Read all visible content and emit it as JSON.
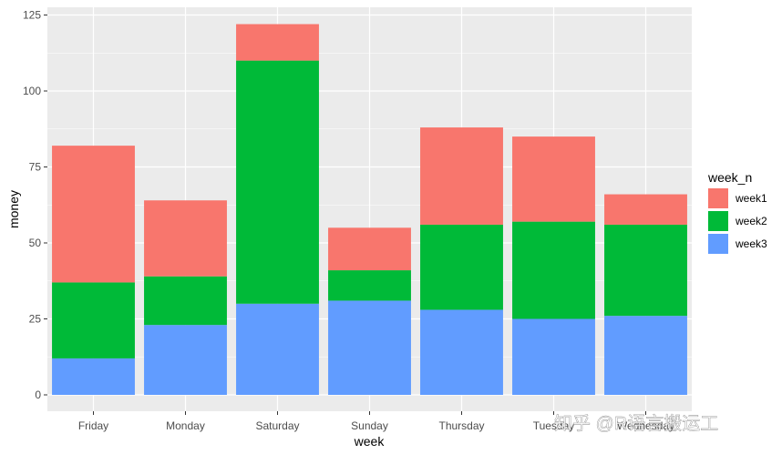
{
  "chart_data": {
    "type": "bar",
    "stacked": true,
    "title": "",
    "xlabel": "week",
    "ylabel": "money",
    "categories": [
      "Friday",
      "Monday",
      "Saturday",
      "Sunday",
      "Thursday",
      "Tuesday",
      "Wednesday"
    ],
    "series": [
      {
        "name": "week3",
        "color": "#619CFF",
        "values": [
          12,
          23,
          30,
          31,
          28,
          25,
          26
        ]
      },
      {
        "name": "week2",
        "color": "#00BA38",
        "values": [
          25,
          16,
          80,
          10,
          28,
          32,
          30
        ]
      },
      {
        "name": "week1",
        "color": "#F8766D",
        "values": [
          45,
          25,
          12,
          14,
          32,
          28,
          10
        ]
      }
    ],
    "ylim": [
      0,
      125
    ],
    "yticks": [
      0,
      25,
      50,
      75,
      100,
      125
    ],
    "grid": true,
    "panel_background": "#EBEBEB",
    "legend": {
      "title": "week_n",
      "position": "right",
      "entries": [
        {
          "label": "week1",
          "color": "#F8766D"
        },
        {
          "label": "week2",
          "color": "#00BA38"
        },
        {
          "label": "week3",
          "color": "#619CFF"
        }
      ]
    }
  },
  "watermark": "知乎 @R语言搬运工"
}
